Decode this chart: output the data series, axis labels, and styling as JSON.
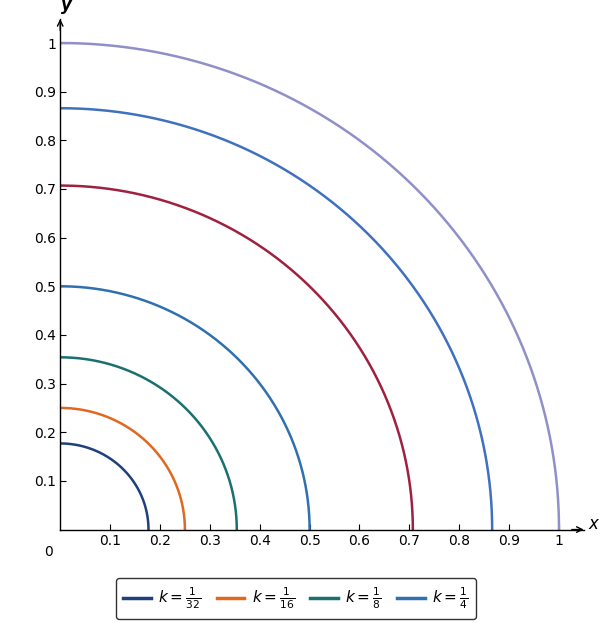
{
  "curves": [
    {
      "r": 0.177,
      "color": "#1f3f7f"
    },
    {
      "r": 0.25,
      "color": "#e06820"
    },
    {
      "r": 0.354,
      "color": "#1a7070"
    },
    {
      "r": 0.5,
      "color": "#3070b0"
    },
    {
      "r": 0.707,
      "color": "#a02040"
    },
    {
      "r": 0.866,
      "color": "#4070c0"
    },
    {
      "r": 1.0,
      "color": "#9090c8"
    }
  ],
  "legend_entries": [
    {
      "label": "k = \\frac{1}{32}",
      "color": "#1f3f7f"
    },
    {
      "label": "k = \\frac{1}{16}",
      "color": "#e06820"
    },
    {
      "label": "k = \\frac{1}{8}",
      "color": "#1a7070"
    },
    {
      "label": "k = \\frac{1}{4}",
      "color": "#3070b0"
    }
  ],
  "xlim": [
    0,
    1.05
  ],
  "ylim": [
    0,
    1.05
  ],
  "xticks": [
    0.1,
    0.2,
    0.3,
    0.4,
    0.5,
    0.6,
    0.7,
    0.8,
    0.9,
    1.0
  ],
  "yticks": [
    0.1,
    0.2,
    0.3,
    0.4,
    0.5,
    0.6,
    0.7,
    0.8,
    0.9,
    1.0
  ],
  "xlabel": "x",
  "ylabel": "y",
  "linewidth": 1.8,
  "figsize": [
    6.02,
    6.23
  ],
  "dpi": 100
}
